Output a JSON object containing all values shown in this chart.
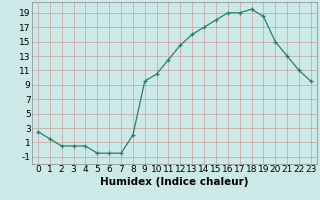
{
  "x": [
    0,
    1,
    2,
    3,
    4,
    5,
    6,
    7,
    8,
    9,
    10,
    11,
    12,
    13,
    14,
    15,
    16,
    17,
    18,
    19,
    20,
    21,
    22,
    23
  ],
  "y": [
    2.5,
    1.5,
    0.5,
    0.5,
    0.5,
    -0.5,
    -0.5,
    -0.5,
    2,
    9.5,
    10.5,
    12.5,
    14.5,
    16,
    17,
    18,
    19,
    19,
    19.5,
    18.5,
    15,
    13,
    11,
    9.5
  ],
  "line_color": "#2e7d6e",
  "marker": "+",
  "bg_color": "#cce9e8",
  "grid_color_major": "#b0b0b0",
  "grid_color_minor": "#d8d8d8",
  "xlabel": "Humidex (Indice chaleur)",
  "xlim": [
    -0.5,
    23.5
  ],
  "ylim": [
    -2,
    20.5
  ],
  "yticks": [
    -1,
    1,
    3,
    5,
    7,
    9,
    11,
    13,
    15,
    17,
    19
  ],
  "xticks": [
    0,
    1,
    2,
    3,
    4,
    5,
    6,
    7,
    8,
    9,
    10,
    11,
    12,
    13,
    14,
    15,
    16,
    17,
    18,
    19,
    20,
    21,
    22,
    23
  ],
  "label_fontsize": 7.5,
  "tick_fontsize": 6.5
}
